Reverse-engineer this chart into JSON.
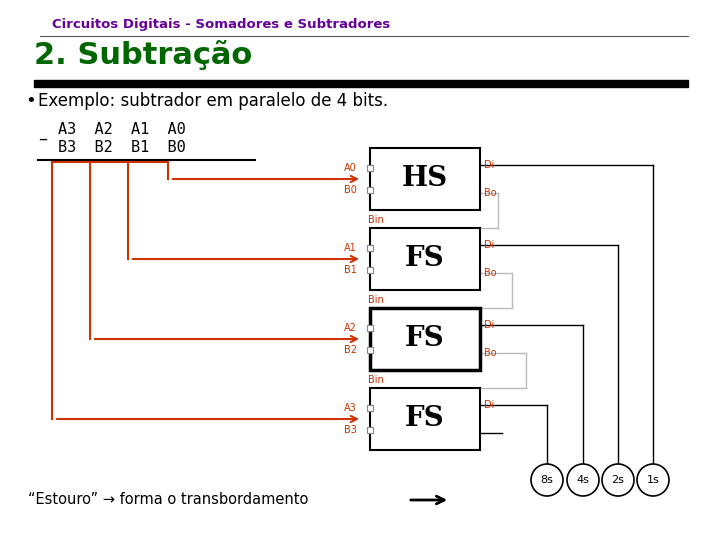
{
  "title": "Circuitos Digitais - Somadores e Subtradores",
  "title_color": "#660099",
  "subtitle": "2. Subtração",
  "subtitle_color": "#006600",
  "bullet_text": "Exemplo: subtrador em paralelo de 4 bits.",
  "footer_text": "“Estouro” → forma o transbordamento",
  "bg_color": "#ffffff",
  "red_color": "#cc3300",
  "black_color": "#000000",
  "gray_color": "#bbbbbb",
  "dark_gray": "#555555",
  "circle_labels": [
    "8s",
    "4s",
    "2s",
    "1s"
  ],
  "hs_label": "HS",
  "fs_label": "FS",
  "figw": 7.2,
  "figh": 5.4,
  "dpi": 100
}
